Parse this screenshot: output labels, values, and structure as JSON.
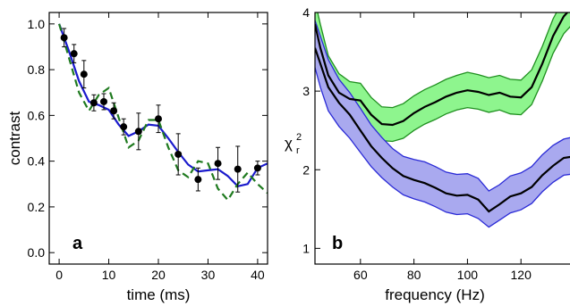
{
  "chart_data": [
    {
      "type": "scatter",
      "panel_label": "a",
      "xlabel": "time (ms)",
      "ylabel": "contrast",
      "xlim": [
        -2,
        42
      ],
      "ylim": [
        -0.05,
        1.05
      ],
      "xticks": [
        "0",
        "10",
        "20",
        "30",
        "40"
      ],
      "yticks": [
        "0.0",
        "0.2",
        "0.4",
        "0.6",
        "0.8",
        "1.0"
      ],
      "grid": false,
      "points": [
        {
          "x": 1,
          "y": 0.94,
          "err": 0.04
        },
        {
          "x": 3,
          "y": 0.87,
          "err": 0.04
        },
        {
          "x": 5,
          "y": 0.78,
          "err": 0.06
        },
        {
          "x": 7,
          "y": 0.655,
          "err": 0.035
        },
        {
          "x": 9,
          "y": 0.66,
          "err": 0.035
        },
        {
          "x": 11,
          "y": 0.62,
          "err": 0.035
        },
        {
          "x": 13,
          "y": 0.55,
          "err": 0.035
        },
        {
          "x": 16,
          "y": 0.53,
          "err": 0.08
        },
        {
          "x": 20,
          "y": 0.585,
          "err": 0.06
        },
        {
          "x": 24,
          "y": 0.43,
          "err": 0.09
        },
        {
          "x": 28,
          "y": 0.32,
          "err": 0.05
        },
        {
          "x": 32,
          "y": 0.39,
          "err": 0.07
        },
        {
          "x": 36,
          "y": 0.365,
          "err": 0.1
        },
        {
          "x": 40,
          "y": 0.37,
          "err": 0.03
        }
      ],
      "curves": [
        {
          "style": "solid",
          "color": "#1a1acc",
          "x": [
            0,
            2,
            4,
            6,
            8,
            10,
            12,
            14,
            16,
            18,
            20,
            22,
            24,
            26,
            28,
            30,
            32,
            34,
            36,
            38,
            40,
            42
          ],
          "y": [
            1.0,
            0.88,
            0.75,
            0.66,
            0.645,
            0.625,
            0.56,
            0.51,
            0.53,
            0.56,
            0.555,
            0.5,
            0.44,
            0.385,
            0.355,
            0.36,
            0.365,
            0.335,
            0.29,
            0.3,
            0.37,
            0.39
          ]
        },
        {
          "style": "dashed",
          "color": "#1f7a1f",
          "x": [
            0,
            2,
            4,
            6,
            8,
            10,
            12,
            14,
            16,
            18,
            20,
            22,
            24,
            26,
            28,
            30,
            32,
            34,
            36,
            38,
            40,
            42
          ],
          "y": [
            1.0,
            0.85,
            0.7,
            0.62,
            0.69,
            0.72,
            0.59,
            0.46,
            0.49,
            0.58,
            0.58,
            0.46,
            0.36,
            0.33,
            0.4,
            0.39,
            0.28,
            0.23,
            0.3,
            0.35,
            0.3,
            0.26
          ]
        }
      ]
    },
    {
      "type": "line",
      "panel_label": "b",
      "xlabel": "frequency (Hz)",
      "ylabel": "χ",
      "ylabel_sup": "2",
      "ylabel_sub": "r",
      "xlim": [
        43,
        140
      ],
      "ylim": [
        0.8,
        4.0
      ],
      "xticks": [
        "60",
        "80",
        "100",
        "120"
      ],
      "yticks": [
        "1",
        "2",
        "3",
        "4"
      ],
      "grid": false,
      "series": [
        {
          "fill": "#8ef58e",
          "stroke": "#1f8f1f",
          "x": [
            43,
            45,
            48,
            52,
            56,
            60,
            64,
            68,
            72,
            76,
            80,
            84,
            88,
            92,
            96,
            100,
            104,
            108,
            112,
            116,
            120,
            124,
            128,
            132,
            136,
            140
          ],
          "center": [
            3.85,
            3.55,
            3.2,
            2.98,
            2.9,
            2.88,
            2.7,
            2.58,
            2.57,
            2.62,
            2.72,
            2.8,
            2.86,
            2.93,
            2.98,
            3.01,
            2.99,
            2.95,
            2.98,
            2.93,
            2.92,
            3.05,
            3.35,
            3.7,
            3.95,
            4.1
          ],
          "lower": [
            3.55,
            3.25,
            2.95,
            2.75,
            2.68,
            2.67,
            2.49,
            2.37,
            2.36,
            2.4,
            2.5,
            2.58,
            2.64,
            2.71,
            2.76,
            2.79,
            2.77,
            2.73,
            2.76,
            2.71,
            2.7,
            2.83,
            3.13,
            3.48,
            3.73,
            3.88
          ],
          "upper": [
            4.15,
            3.85,
            3.45,
            3.22,
            3.12,
            3.1,
            2.92,
            2.8,
            2.79,
            2.84,
            2.94,
            3.02,
            3.08,
            3.15,
            3.2,
            3.24,
            3.21,
            3.17,
            3.2,
            3.15,
            3.14,
            3.27,
            3.57,
            3.92,
            4.17,
            4.32
          ]
        },
        {
          "fill": "#a9a9ef",
          "stroke": "#2a2ad6",
          "x": [
            43,
            45,
            48,
            52,
            56,
            60,
            64,
            68,
            72,
            76,
            80,
            84,
            88,
            92,
            96,
            100,
            104,
            108,
            112,
            116,
            120,
            124,
            128,
            132,
            136,
            140
          ],
          "center": [
            3.55,
            3.35,
            3.05,
            2.85,
            2.7,
            2.5,
            2.3,
            2.15,
            2.02,
            1.92,
            1.87,
            1.83,
            1.77,
            1.7,
            1.67,
            1.68,
            1.62,
            1.47,
            1.56,
            1.66,
            1.7,
            1.78,
            1.93,
            2.05,
            2.15,
            2.17
          ],
          "lower": [
            3.3,
            3.05,
            2.75,
            2.55,
            2.4,
            2.22,
            2.04,
            1.9,
            1.78,
            1.68,
            1.63,
            1.59,
            1.53,
            1.46,
            1.43,
            1.44,
            1.38,
            1.27,
            1.36,
            1.45,
            1.49,
            1.57,
            1.72,
            1.84,
            1.93,
            1.95
          ],
          "upper": [
            3.9,
            3.7,
            3.4,
            3.15,
            2.98,
            2.78,
            2.57,
            2.41,
            2.27,
            2.17,
            2.13,
            2.1,
            2.04,
            1.97,
            1.94,
            1.95,
            1.89,
            1.73,
            1.81,
            1.92,
            1.96,
            2.04,
            2.19,
            2.31,
            2.39,
            2.42
          ]
        }
      ]
    }
  ]
}
